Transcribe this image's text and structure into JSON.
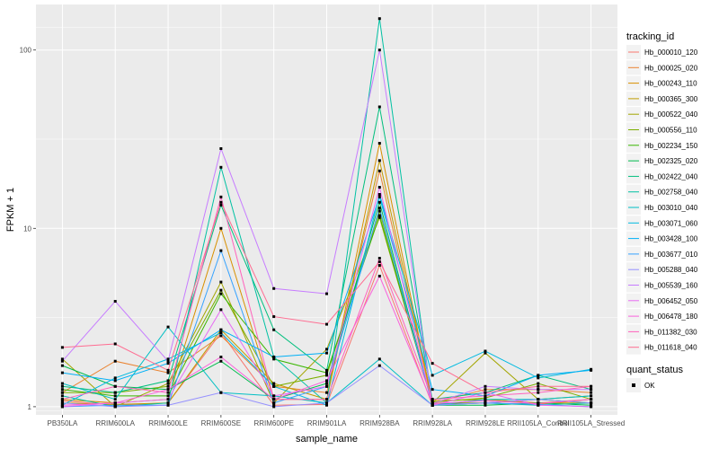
{
  "chart_data": {
    "type": "line",
    "title": "",
    "xlabel": "sample_name",
    "ylabel": "FPKM + 1",
    "y_scale": "log10",
    "ylim": [
      0.9,
      180
    ],
    "y_ticks": [
      1,
      10,
      100
    ],
    "grid": true,
    "legend_placement": "right",
    "categories": [
      "PB350LA",
      "RRIM600LA",
      "RRIM600LE",
      "RRIM600SE",
      "RRIM600PE",
      "RRIM901LA",
      "RRIM928BA",
      "RRIM928LA",
      "RRIM928LE",
      "RRII105LA_Control",
      "RRII105LA_Stressed"
    ],
    "series": [
      {
        "name": "Hb_000010_120",
        "color": "#F8766D",
        "values": [
          1.08,
          1.02,
          1.05,
          2.6,
          1.02,
          1.03,
          6.2,
          1.02,
          1.1,
          1.05,
          1.1
        ]
      },
      {
        "name": "Hb_000025_020",
        "color": "#EA8331",
        "values": [
          1.2,
          1.8,
          1.55,
          2.5,
          1.3,
          1.2,
          21.0,
          1.05,
          1.25,
          1.25,
          1.2
        ]
      },
      {
        "name": "Hb_000243_110",
        "color": "#D89000",
        "values": [
          1.1,
          1.05,
          1.1,
          10.0,
          1.1,
          1.1,
          30.0,
          1.05,
          1.05,
          1.03,
          1.1
        ]
      },
      {
        "name": "Hb_000365_300",
        "color": "#C09B00",
        "values": [
          1.05,
          1.03,
          1.05,
          2.7,
          1.35,
          1.1,
          24.0,
          1.08,
          1.1,
          1.05,
          1.05
        ]
      },
      {
        "name": "Hb_000522_040",
        "color": "#A3A500",
        "values": [
          1.85,
          1.0,
          1.35,
          5.0,
          1.05,
          2.1,
          11.5,
          1.05,
          2.0,
          1.1,
          1.15
        ]
      },
      {
        "name": "Hb_000556_110",
        "color": "#7CAE00",
        "values": [
          1.2,
          1.2,
          1.3,
          4.5,
          1.3,
          1.5,
          12.5,
          1.06,
          1.12,
          1.35,
          1.1
        ]
      },
      {
        "name": "Hb_002234_150",
        "color": "#39B600",
        "values": [
          1.25,
          1.15,
          1.15,
          4.3,
          1.85,
          1.55,
          11.8,
          1.04,
          1.05,
          1.1,
          1.05
        ]
      },
      {
        "name": "Hb_002325_020",
        "color": "#00BB4E",
        "values": [
          1.7,
          1.3,
          1.25,
          1.8,
          1.1,
          1.35,
          14.0,
          1.02,
          1.02,
          1.05,
          1.02
        ]
      },
      {
        "name": "Hb_002422_040",
        "color": "#00BF7D",
        "values": [
          1.3,
          1.2,
          1.4,
          13.5,
          2.7,
          1.6,
          48.0,
          1.1,
          1.2,
          1.5,
          1.25
        ]
      },
      {
        "name": "Hb_002758_040",
        "color": "#00C1A3",
        "values": [
          1.15,
          1.0,
          1.05,
          22.0,
          1.9,
          1.05,
          150.0,
          1.02,
          1.05,
          1.02,
          1.05
        ]
      },
      {
        "name": "Hb_003010_040",
        "color": "#00BFC4",
        "values": [
          1.35,
          1.1,
          2.8,
          1.2,
          1.15,
          1.05,
          1.85,
          1.02,
          1.1,
          1.1,
          1.15
        ]
      },
      {
        "name": "Hb_003071_060",
        "color": "#00BAE0",
        "values": [
          1.02,
          1.45,
          1.85,
          2.6,
          1.3,
          1.02,
          15.5,
          1.5,
          2.05,
          1.45,
          1.62
        ]
      },
      {
        "name": "Hb_003428_100",
        "color": "#00B0F6",
        "values": [
          1.55,
          1.4,
          1.75,
          2.7,
          1.9,
          2.0,
          15.0,
          1.25,
          1.15,
          1.5,
          1.6
        ]
      },
      {
        "name": "Hb_003677_010",
        "color": "#35A2FF",
        "values": [
          1.0,
          1.02,
          1.02,
          7.5,
          1.05,
          1.3,
          13.0,
          1.02,
          1.05,
          1.03,
          1.0
        ]
      },
      {
        "name": "Hb_005288_040",
        "color": "#9590FF",
        "values": [
          1.05,
          1.0,
          1.02,
          1.2,
          1.0,
          1.05,
          1.7,
          1.02,
          1.05,
          1.1,
          1.05
        ]
      },
      {
        "name": "Hb_005539_160",
        "color": "#C77CFF",
        "values": [
          1.8,
          3.9,
          1.8,
          28.0,
          4.6,
          4.3,
          100.0,
          1.04,
          1.3,
          1.25,
          1.25
        ]
      },
      {
        "name": "Hb_006452_050",
        "color": "#E76BF3",
        "values": [
          1.0,
          1.05,
          1.1,
          3.5,
          1.15,
          1.3,
          17.0,
          1.02,
          1.2,
          1.02,
          1.0
        ]
      },
      {
        "name": "Hb_006478_180",
        "color": "#FA62DB",
        "values": [
          1.02,
          1.05,
          1.25,
          1.9,
          1.1,
          1.4,
          5.4,
          1.04,
          1.08,
          1.04,
          1.1
        ]
      },
      {
        "name": "Hb_011382_030",
        "color": "#FF62BC",
        "values": [
          1.1,
          1.3,
          1.2,
          15.0,
          1.1,
          1.1,
          6.8,
          1.1,
          1.15,
          1.2,
          1.3
        ]
      },
      {
        "name": "Hb_011618_040",
        "color": "#FF6C91",
        "values": [
          2.15,
          2.25,
          1.6,
          14.0,
          3.2,
          2.9,
          6.5,
          1.75,
          1.2,
          1.3,
          1.3
        ]
      }
    ],
    "legend": {
      "title": "tracking_id",
      "shape_title": "quant_status",
      "shape_label": "OK"
    }
  }
}
